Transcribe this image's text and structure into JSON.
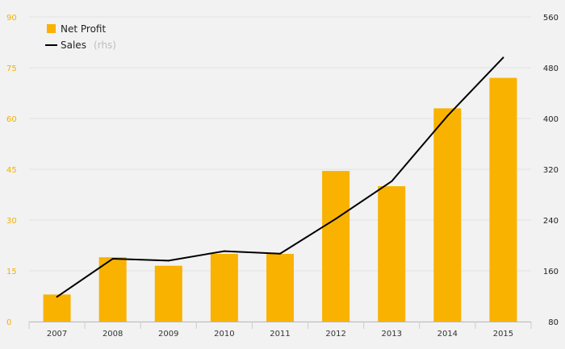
{
  "chart_data": {
    "type": "bar+line",
    "categories": [
      "2007",
      "2008",
      "2009",
      "2010",
      "2011",
      "2012",
      "2013",
      "2014",
      "2015"
    ],
    "series": [
      {
        "name": "Net Profit",
        "type": "bar",
        "axis": "left",
        "color": "#f9b200",
        "values": [
          8,
          19,
          16.5,
          20,
          20,
          44.5,
          40,
          63,
          72
        ]
      },
      {
        "name": "Sales",
        "name_note": "(rhs)",
        "type": "line",
        "axis": "right",
        "color": "#000000",
        "values": [
          119,
          179,
          176,
          191,
          187,
          242,
          301,
          404,
          496
        ]
      }
    ],
    "yleft": {
      "min": 0,
      "max": 90,
      "ticks": [
        "0",
        "15",
        "30",
        "45",
        "60",
        "75",
        "90"
      ]
    },
    "yright": {
      "min": 80,
      "max": 560,
      "ticks": [
        "80",
        "160",
        "240",
        "320",
        "400",
        "480",
        "560"
      ]
    },
    "grid": "horizontal",
    "legend_position": "top-left"
  }
}
